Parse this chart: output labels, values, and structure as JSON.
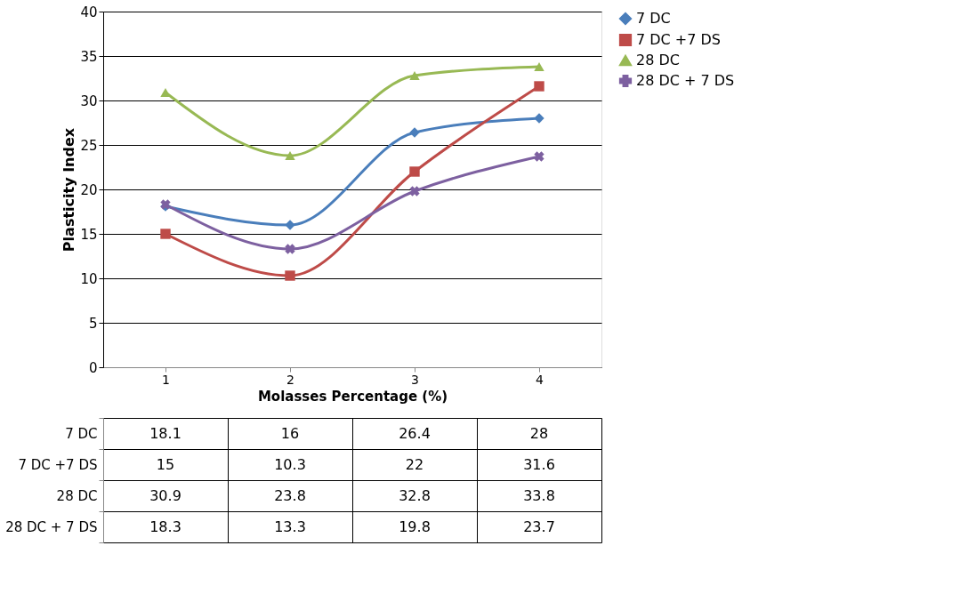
{
  "chart_data": {
    "type": "line",
    "xlabel": "Molasses Percentage (%)",
    "ylabel": "Plasticity Index",
    "categories": [
      "1",
      "2",
      "3",
      "4"
    ],
    "series": [
      {
        "name": "7 DC",
        "color": "#4a7ebb",
        "marker": "diamond",
        "values": [
          18.1,
          16,
          26.4,
          28
        ]
      },
      {
        "name": "7 DC +7 DS",
        "color": "#be4b48",
        "marker": "square",
        "values": [
          15,
          10.3,
          22,
          31.6
        ]
      },
      {
        "name": "28 DC",
        "color": "#98b954",
        "marker": "triangle",
        "values": [
          30.9,
          23.8,
          32.8,
          33.8
        ]
      },
      {
        "name": "28 DC + 7 DS",
        "color": "#7d60a0",
        "marker": "cross",
        "values": [
          18.3,
          13.3,
          19.8,
          23.7
        ]
      }
    ],
    "ylim": [
      0,
      40
    ],
    "yticks": [
      0,
      5,
      10,
      15,
      20,
      25,
      30,
      35,
      40
    ],
    "grid": "y",
    "legend": "right",
    "data_labels": true
  }
}
